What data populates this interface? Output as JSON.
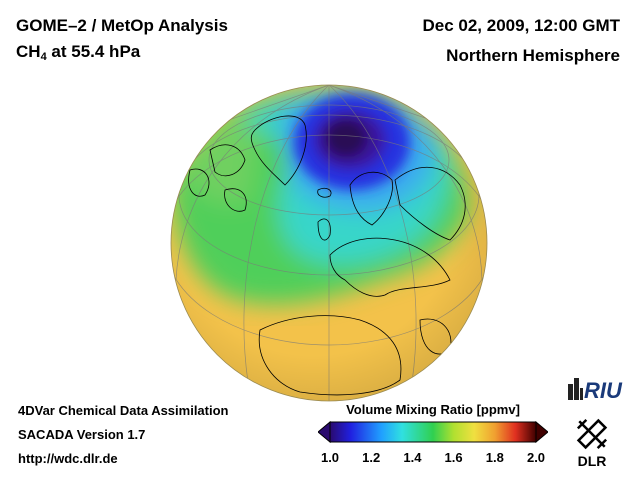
{
  "header": {
    "title_line1": "GOME–2 / MetOp Analysis",
    "title_line2_main": "CH",
    "title_line2_sub": "4",
    "title_line2_rest": " at 55.4 hPa",
    "date": "Dec 02, 2009, 12:00 GMT",
    "region": "Northern Hemisphere"
  },
  "footer": {
    "line1": "4DVar Chemical Data Assimilation",
    "line2": "SACADA Version 1.7",
    "line3": "http://wdc.dlr.de"
  },
  "colorbar": {
    "title": "Volume Mixing Ratio [ppmv]",
    "ticks": [
      "1.0",
      "1.2",
      "1.4",
      "1.6",
      "1.8",
      "2.0"
    ],
    "min": 1.0,
    "max": 2.0,
    "stops": [
      {
        "v": 0.0,
        "c": "#2a0a6e"
      },
      {
        "v": 0.1,
        "c": "#2020e0"
      },
      {
        "v": 0.25,
        "c": "#20a0ff"
      },
      {
        "v": 0.35,
        "c": "#30e0e0"
      },
      {
        "v": 0.5,
        "c": "#30d050"
      },
      {
        "v": 0.6,
        "c": "#b0e030"
      },
      {
        "v": 0.7,
        "c": "#f0e040"
      },
      {
        "v": 0.8,
        "c": "#f0a030"
      },
      {
        "v": 0.9,
        "c": "#e03020"
      },
      {
        "v": 1.0,
        "c": "#400000"
      }
    ]
  },
  "logos": {
    "riu_text": "RIU",
    "dlr_text": "DLR"
  },
  "map": {
    "background": "#f3c24a",
    "features": [
      "polar-low-methane-vortex",
      "mid-latitude-gradient-band",
      "tropical-high-methane"
    ]
  }
}
